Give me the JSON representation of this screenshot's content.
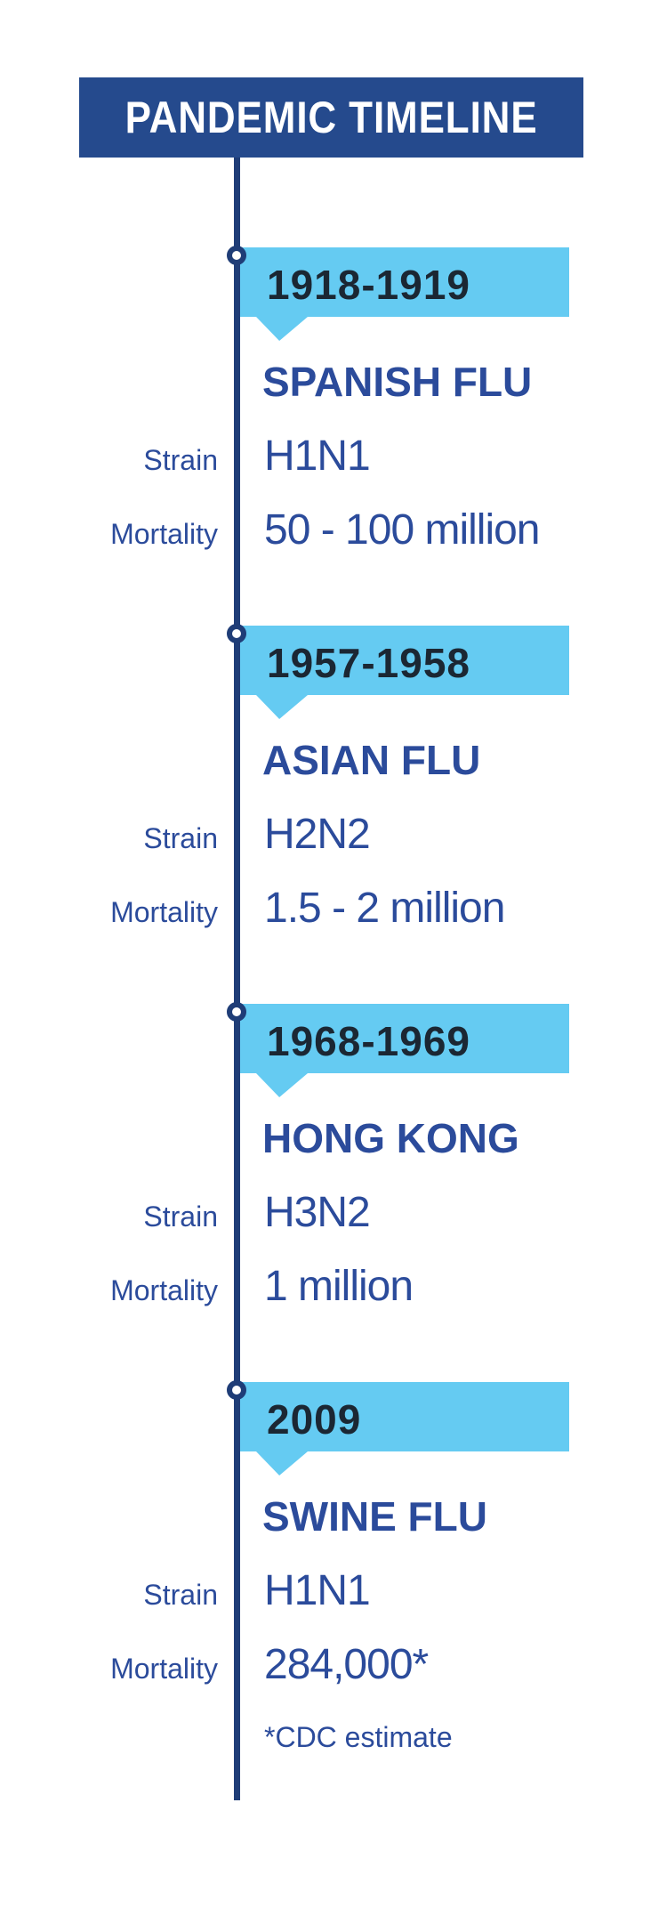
{
  "header": {
    "title": "PANDEMIC TIMELINE"
  },
  "labels": {
    "strain": "Strain",
    "mortality": "Mortality"
  },
  "entries": [
    {
      "period": "1918-1919",
      "name": "SPANISH FLU",
      "strain": "H1N1",
      "mortality": "50 - 100 million"
    },
    {
      "period": "1957-1958",
      "name": "ASIAN FLU",
      "strain": "H2N2",
      "mortality": "1.5 - 2 million"
    },
    {
      "period": "1968-1969",
      "name": "HONG KONG",
      "strain": "H3N2",
      "mortality": "1 million"
    },
    {
      "period": "2009",
      "name": "SWINE FLU",
      "strain": "H1N1",
      "mortality": "284,000*",
      "note": "*CDC estimate"
    }
  ],
  "colors": {
    "page_bg": "#ffffff",
    "header_bg": "#254a8d",
    "header_text": "#ffffff",
    "banner": "#65cbf2",
    "line": "#1f3d77",
    "date_text": "#1b2733",
    "body_text": "#2b4b9b"
  }
}
